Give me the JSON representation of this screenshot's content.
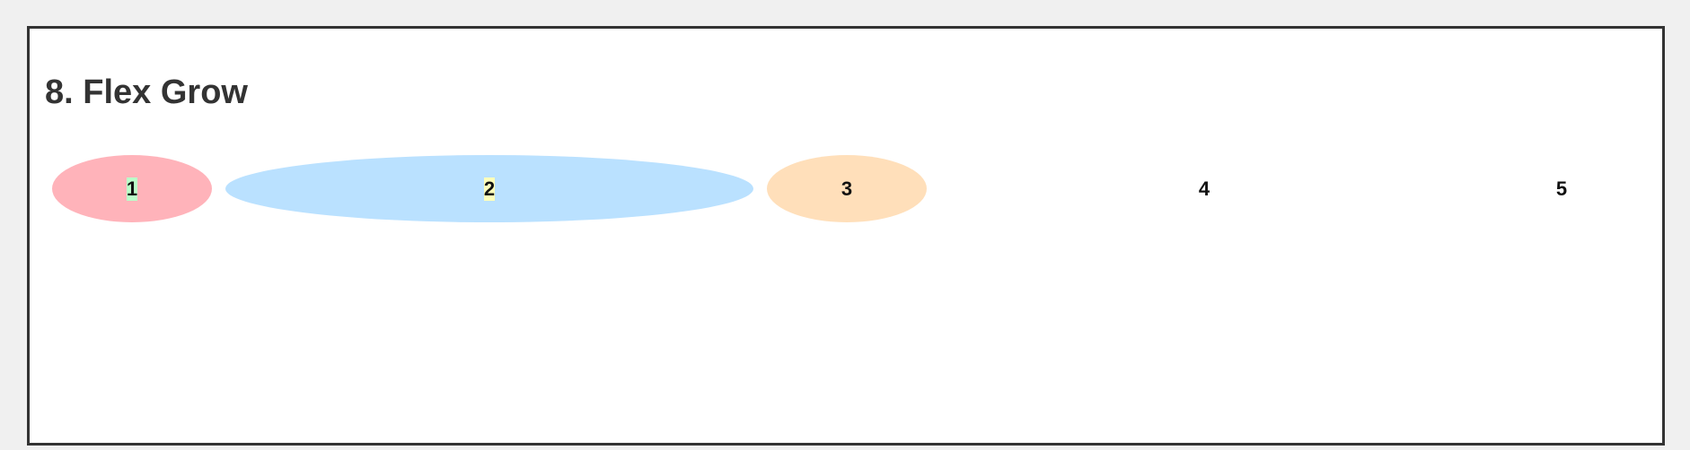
{
  "section": {
    "title": "8. Flex Grow"
  },
  "items": [
    {
      "label": "1",
      "color": "#ffb3ba",
      "flex_grow": 0
    },
    {
      "label": "2",
      "color": "#baffc9",
      "flex_grow": 1
    },
    {
      "label": "3",
      "color": "#bae1ff",
      "flex_grow": 0
    },
    {
      "label": "4",
      "color": "#ffffba",
      "flex_grow": 1
    },
    {
      "label": "5",
      "color": "#ffdfba",
      "flex_grow": 0
    }
  ],
  "colors": {
    "page_background": "#f0f0f0",
    "panel_background": "#ffffff",
    "panel_border": "#333333",
    "title_text": "#333333"
  }
}
